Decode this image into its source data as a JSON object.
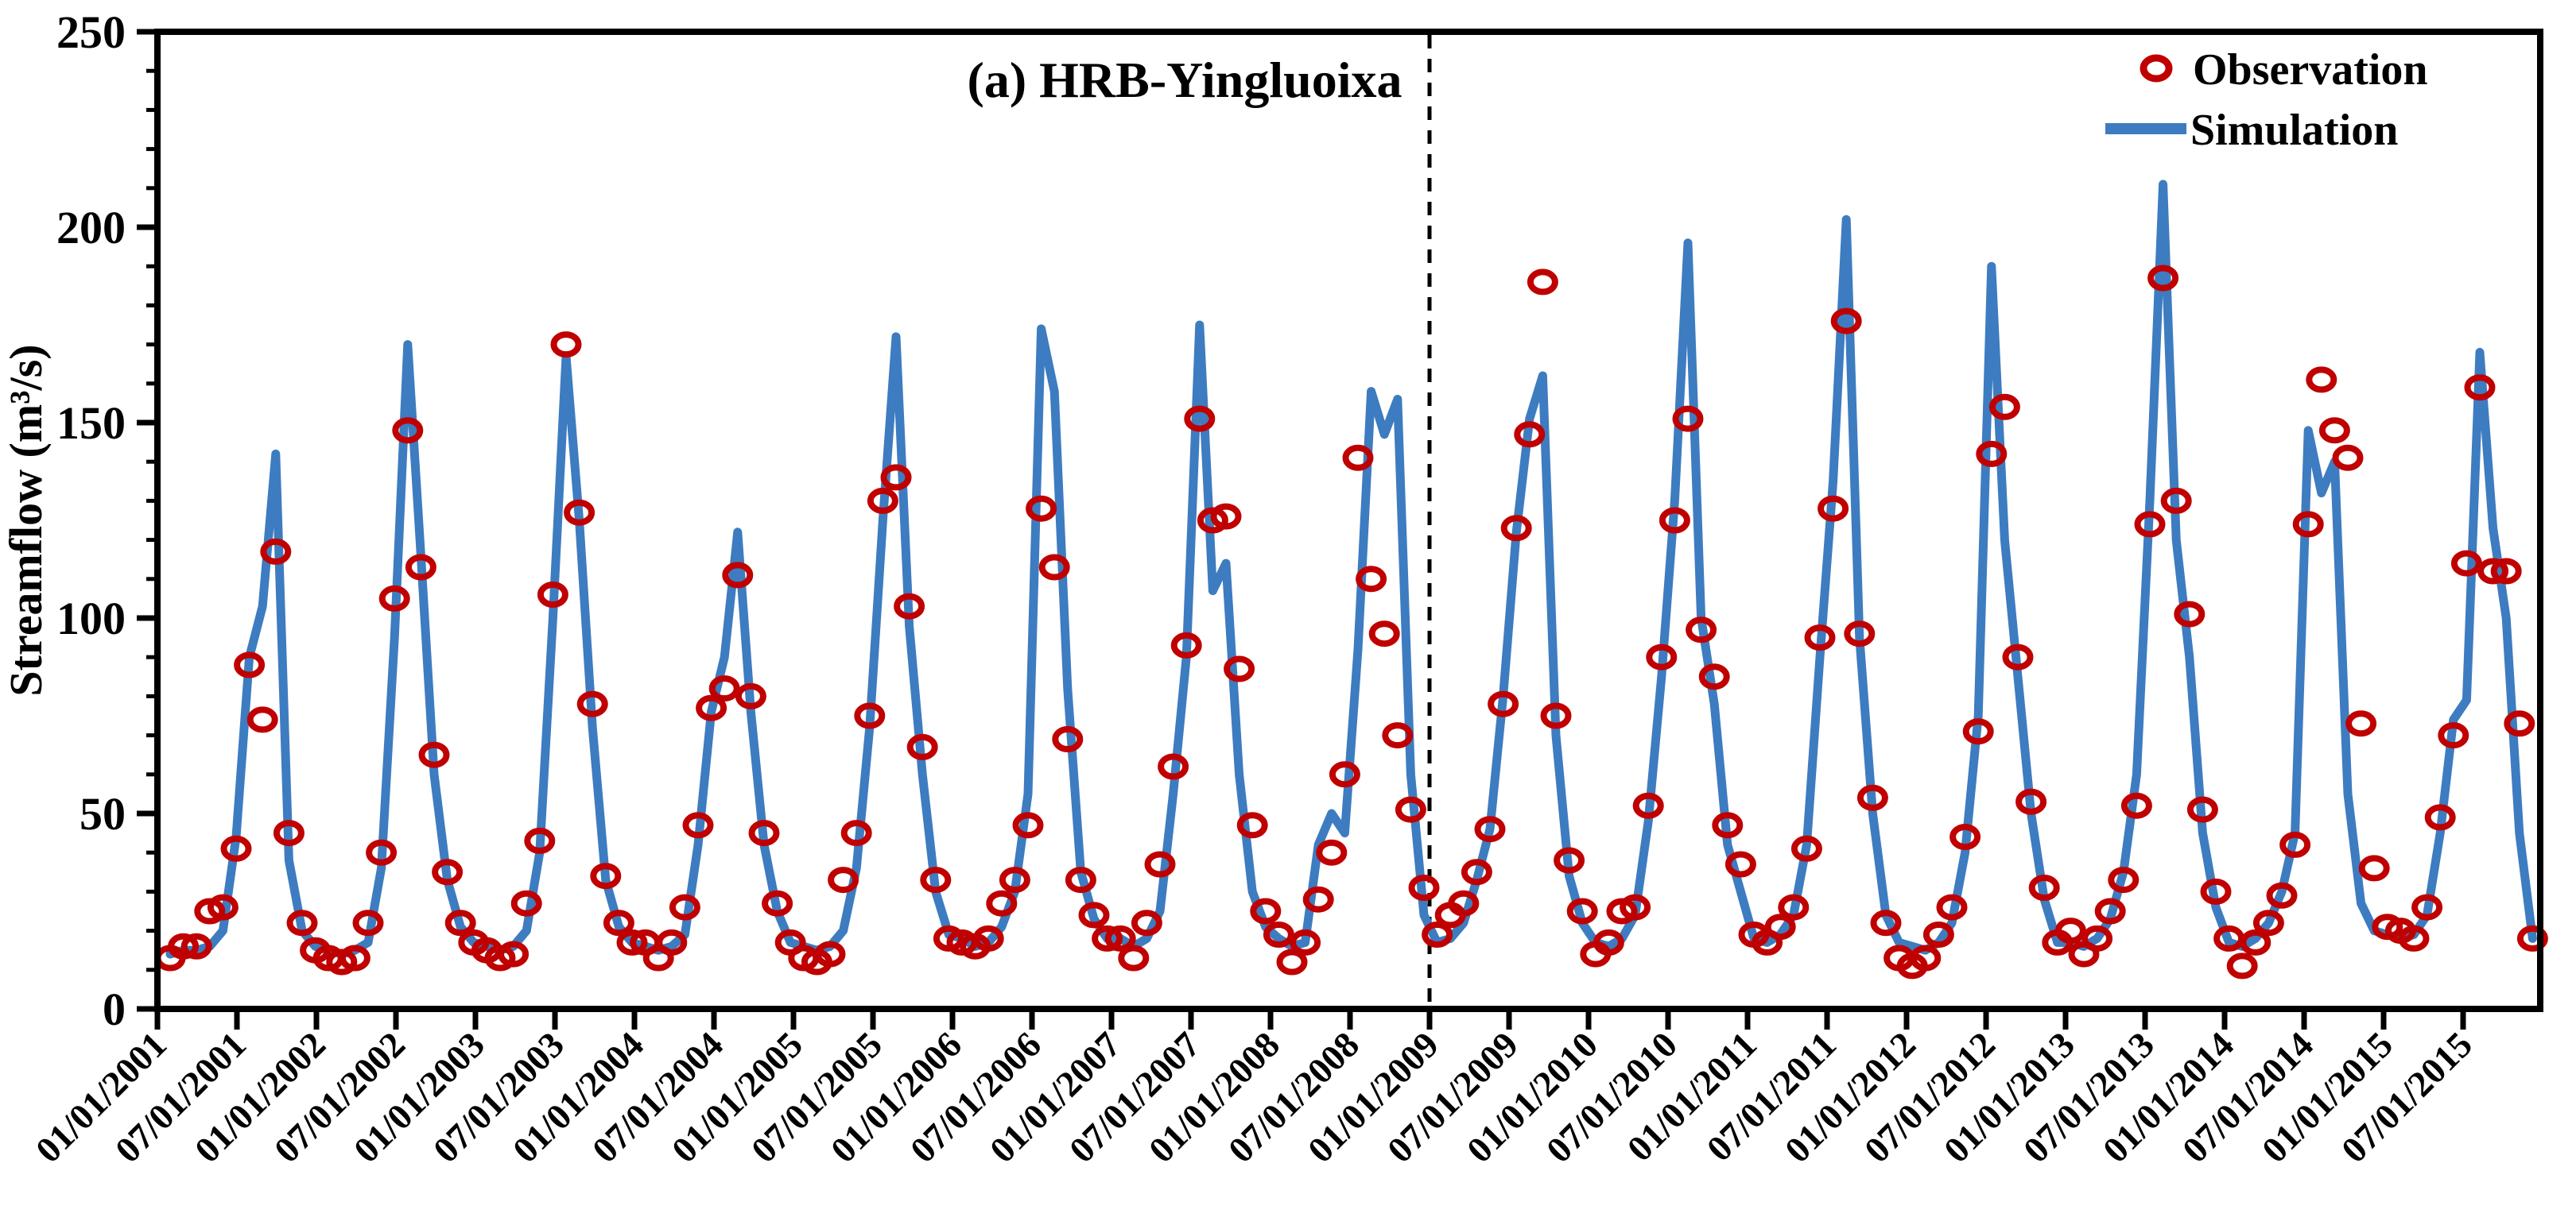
{
  "title": "(a) HRB-Yingluoixa",
  "legend": {
    "observation_label": "Observation",
    "simulation_label": "Simulation",
    "position": "top-right"
  },
  "y_axis": {
    "label": "Streamflow (m³/s)",
    "min": 0,
    "max": 250,
    "major_tick_step": 50,
    "minor_tick_step": 10,
    "tick_labels": [
      "0",
      "50",
      "100",
      "150",
      "200",
      "250"
    ]
  },
  "x_axis": {
    "tick_labels": [
      "01/01/2001",
      "07/01/2001",
      "01/01/2002",
      "07/01/2002",
      "01/01/2003",
      "07/01/2003",
      "01/01/2004",
      "07/01/2004",
      "01/01/2005",
      "07/01/2005",
      "01/01/2006",
      "07/01/2006",
      "01/01/2007",
      "07/01/2007",
      "01/01/2008",
      "07/01/2008",
      "01/01/2009",
      "07/01/2009",
      "01/01/2010",
      "07/01/2010",
      "01/01/2011",
      "07/01/2011",
      "01/01/2012",
      "07/01/2012",
      "01/01/2013",
      "07/01/2013",
      "01/01/2014",
      "07/01/2014",
      "01/01/2015",
      "07/01/2015"
    ]
  },
  "divider_date": "01/01/2009",
  "colors": {
    "observation": "#C00000",
    "simulation": "#3D7CC0",
    "axis": "#000000",
    "background": "#FFFFFF"
  },
  "chart_data": {
    "type": "line",
    "title": "(a) HRB-Yingluoixa",
    "xlabel": "",
    "ylabel": "Streamflow (m³/s)",
    "ylim": [
      0,
      250
    ],
    "grid": false,
    "legend_position": "top-right",
    "x_monthly_start": "01/2001",
    "x_monthly_end": "12/2015",
    "calibration_validation_divider": "01/01/2009",
    "series": [
      {
        "name": "Observation",
        "style": "scatter-open-circles",
        "color": "#C00000",
        "monthly_values": [
          13,
          16,
          16,
          25,
          26,
          41,
          88,
          74,
          117,
          45,
          22,
          15,
          13,
          12,
          13,
          22,
          40,
          105,
          148,
          113,
          65,
          35,
          22,
          17,
          15,
          13,
          14,
          27,
          43,
          106,
          170,
          127,
          78,
          34,
          22,
          17,
          17,
          13,
          17,
          26,
          47,
          77,
          82,
          111,
          80,
          45,
          27,
          17,
          13,
          12,
          14,
          33,
          45,
          75,
          130,
          136,
          103,
          67,
          33,
          18,
          17,
          16,
          18,
          27,
          33,
          47,
          128,
          113,
          69,
          33,
          24,
          18,
          18,
          13,
          22,
          37,
          62,
          93,
          151,
          125,
          126,
          87,
          47,
          25,
          19,
          12,
          17,
          28,
          40,
          60,
          141,
          110,
          96,
          70,
          51,
          31,
          19,
          24,
          27,
          35,
          46,
          78,
          123,
          147,
          186,
          75,
          38,
          25,
          14,
          17,
          25,
          26,
          52,
          90,
          125,
          151,
          97,
          85,
          47,
          37,
          19,
          17,
          21,
          26,
          41,
          95,
          128,
          176,
          96,
          54,
          22,
          13,
          11,
          13,
          19,
          26,
          44,
          71,
          142,
          154,
          90,
          53,
          31,
          17,
          20,
          14,
          18,
          25,
          33,
          52,
          124,
          187,
          130,
          101,
          51,
          30,
          18,
          11,
          17,
          22,
          29,
          42,
          124,
          161,
          148,
          141,
          73,
          36,
          21,
          20,
          18,
          26,
          49,
          70,
          114,
          159,
          112,
          112,
          73,
          18
        ]
      },
      {
        "name": "Simulation",
        "style": "line",
        "color": "#3D7CC0",
        "monthly_values": [
          14,
          15,
          15,
          16,
          20,
          44,
          90,
          103,
          142,
          38,
          20,
          16,
          15,
          14,
          15,
          17,
          36,
          95,
          170,
          116,
          60,
          33,
          21,
          17,
          16,
          15,
          16,
          20,
          40,
          100,
          167,
          125,
          72,
          33,
          21,
          17,
          16,
          15,
          16,
          19,
          42,
          76,
          90,
          122,
          76,
          42,
          25,
          17,
          16,
          15,
          16,
          20,
          36,
          72,
          125,
          172,
          98,
          60,
          30,
          19,
          18,
          16,
          17,
          21,
          30,
          55,
          174,
          158,
          82,
          35,
          23,
          18,
          18,
          16,
          18,
          25,
          55,
          90,
          175,
          107,
          114,
          60,
          30,
          21,
          18,
          16,
          17,
          42,
          50,
          45,
          92,
          158,
          147,
          156,
          60,
          24,
          17,
          18,
          22,
          33,
          46,
          80,
          122,
          151,
          162,
          70,
          34,
          22,
          17,
          16,
          18,
          24,
          48,
          85,
          130,
          196,
          100,
          78,
          42,
          30,
          18,
          17,
          19,
          24,
          42,
          90,
          135,
          202,
          95,
          50,
          24,
          17,
          16,
          15,
          17,
          22,
          40,
          75,
          190,
          120,
          85,
          50,
          28,
          17,
          17,
          16,
          18,
          23,
          35,
          60,
          130,
          211,
          120,
          90,
          45,
          26,
          17,
          16,
          18,
          22,
          30,
          45,
          148,
          132,
          140,
          55,
          27,
          20,
          19,
          18,
          19,
          24,
          45,
          74,
          79,
          168,
          123,
          100,
          45,
          18
        ]
      }
    ]
  }
}
